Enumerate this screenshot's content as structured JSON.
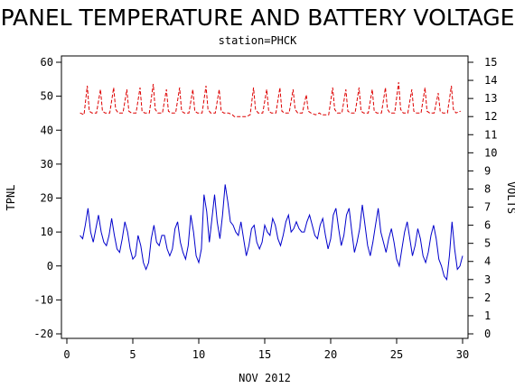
{
  "chart_data": {
    "type": "line",
    "title": "PANEL TEMPERATURE AND BATTERY VOLTAGE",
    "subtitle": "station=PHCK",
    "xlabel": "NOV 2012",
    "ylabel_left": "TPNL",
    "ylabel_right": "VOLTS",
    "xlim": [
      0,
      30
    ],
    "ylim_left": [
      -20,
      60
    ],
    "ylim_right": [
      0,
      15
    ],
    "x_ticks": [
      0,
      5,
      10,
      15,
      20,
      25,
      30
    ],
    "y_left_ticks": [
      -20,
      -10,
      0,
      10,
      20,
      30,
      40,
      50,
      60
    ],
    "y_right_ticks": [
      0,
      1,
      2,
      3,
      4,
      5,
      6,
      7,
      8,
      9,
      10,
      11,
      12,
      13,
      14,
      15
    ],
    "grid": false,
    "series": [
      {
        "axis": "left",
        "color": "#0000cc",
        "style": "solid",
        "x": [
          1.0,
          1.2,
          1.4,
          1.6,
          1.8,
          2.0,
          2.2,
          2.4,
          2.6,
          2.8,
          3.0,
          3.2,
          3.4,
          3.6,
          3.8,
          4.0,
          4.2,
          4.4,
          4.6,
          4.8,
          5.0,
          5.2,
          5.4,
          5.6,
          5.8,
          6.0,
          6.2,
          6.4,
          6.6,
          6.8,
          7.0,
          7.2,
          7.4,
          7.6,
          7.8,
          8.0,
          8.2,
          8.4,
          8.6,
          8.8,
          9.0,
          9.2,
          9.4,
          9.6,
          9.8,
          10.0,
          10.2,
          10.4,
          10.6,
          10.8,
          11.0,
          11.2,
          11.4,
          11.6,
          11.8,
          12.0,
          12.2,
          12.4,
          12.6,
          12.8,
          13.0,
          13.2,
          13.4,
          13.6,
          13.8,
          14.0,
          14.2,
          14.4,
          14.6,
          14.8,
          15.0,
          15.2,
          15.4,
          15.6,
          15.8,
          16.0,
          16.2,
          16.4,
          16.6,
          16.8,
          17.0,
          17.2,
          17.4,
          17.6,
          17.8,
          18.0,
          18.2,
          18.4,
          18.6,
          18.8,
          19.0,
          19.2,
          19.4,
          19.6,
          19.8,
          20.0,
          20.2,
          20.4,
          20.6,
          20.8,
          21.0,
          21.2,
          21.4,
          21.6,
          21.8,
          22.0,
          22.2,
          22.4,
          22.6,
          22.8,
          23.0,
          23.2,
          23.4,
          23.6,
          23.8,
          24.0,
          24.2,
          24.4,
          24.6,
          24.8,
          25.0,
          25.2,
          25.4,
          25.6,
          25.8,
          26.0,
          26.2,
          26.4,
          26.6,
          26.8,
          27.0,
          27.2,
          27.4,
          27.6,
          27.8,
          28.0,
          28.2,
          28.4,
          28.6,
          28.8,
          29.0,
          29.2,
          29.4,
          29.6,
          29.8,
          30.0
        ],
        "values": [
          9,
          8,
          12,
          17,
          10,
          7,
          11,
          15,
          10,
          7,
          6,
          9,
          14,
          9,
          5,
          4,
          8,
          13,
          10,
          5,
          2,
          3,
          9,
          6,
          1,
          -1,
          1,
          8,
          12,
          7,
          6,
          9,
          9,
          5,
          3,
          5,
          11,
          13,
          7,
          4,
          2,
          6,
          15,
          10,
          3,
          1,
          5,
          21,
          16,
          7,
          14,
          21,
          13,
          8,
          15,
          24,
          19,
          13,
          12,
          10,
          9,
          13,
          8,
          3,
          6,
          11,
          12,
          7,
          5,
          7,
          12,
          10,
          9,
          14,
          12,
          8,
          6,
          9,
          13,
          15,
          10,
          11,
          13,
          11,
          10,
          10,
          13,
          15,
          12,
          9,
          8,
          12,
          14,
          9,
          5,
          8,
          15,
          17,
          11,
          6,
          9,
          15,
          17,
          10,
          4,
          7,
          11,
          18,
          12,
          6,
          3,
          7,
          12,
          17,
          10,
          7,
          4,
          8,
          11,
          7,
          2,
          0,
          5,
          10,
          13,
          8,
          3,
          6,
          11,
          8,
          3,
          1,
          4,
          9,
          12,
          8,
          2,
          0,
          -3,
          -4,
          3,
          13,
          5,
          -1,
          0,
          3
        ],
        "x_end": [
          30.0
        ]
      },
      {
        "axis": "right",
        "color": "#dd0000",
        "style": "dashed",
        "x": [
          1.0,
          1.3,
          1.55,
          1.7,
          1.9,
          2.25,
          2.55,
          2.7,
          2.9,
          3.25,
          3.55,
          3.7,
          3.9,
          4.25,
          4.55,
          4.7,
          4.9,
          5.25,
          5.55,
          5.7,
          5.9,
          6.25,
          6.55,
          6.7,
          6.9,
          7.25,
          7.55,
          7.7,
          7.9,
          8.25,
          8.55,
          8.7,
          8.9,
          9.25,
          9.55,
          9.7,
          9.9,
          10.25,
          10.55,
          10.7,
          10.9,
          11.25,
          11.55,
          11.7,
          11.9,
          12.25,
          12.55,
          12.7,
          12.9,
          13.25,
          13.6,
          13.9,
          14.15,
          14.3,
          14.5,
          14.85,
          15.15,
          15.3,
          15.5,
          15.85,
          16.15,
          16.3,
          16.5,
          16.85,
          17.15,
          17.3,
          17.5,
          17.85,
          18.15,
          18.3,
          18.5,
          18.85,
          19.15,
          19.3,
          19.5,
          19.85,
          20.15,
          20.3,
          20.5,
          20.85,
          21.15,
          21.3,
          21.5,
          21.85,
          22.15,
          22.3,
          22.5,
          22.85,
          23.15,
          23.3,
          23.5,
          23.85,
          24.15,
          24.3,
          24.5,
          24.85,
          25.15,
          25.3,
          25.5,
          25.85,
          26.15,
          26.3,
          26.5,
          26.85,
          27.15,
          27.3,
          27.5,
          27.85,
          28.15,
          28.3,
          28.5,
          28.85,
          29.15,
          29.3,
          29.5,
          29.85
        ],
        "values": [
          12.2,
          12.1,
          13.7,
          12.3,
          12.2,
          12.2,
          13.5,
          12.3,
          12.2,
          12.2,
          13.6,
          12.4,
          12.2,
          12.2,
          13.5,
          12.3,
          12.2,
          12.2,
          13.6,
          12.3,
          12.2,
          12.2,
          13.8,
          12.4,
          12.2,
          12.2,
          13.5,
          12.3,
          12.2,
          12.2,
          13.6,
          12.3,
          12.2,
          12.2,
          13.5,
          12.3,
          12.2,
          12.2,
          13.7,
          12.4,
          12.2,
          12.2,
          13.5,
          12.3,
          12.2,
          12.2,
          12.1,
          12.0,
          12.0,
          12.0,
          12.0,
          12.1,
          13.6,
          12.4,
          12.2,
          12.2,
          13.5,
          12.3,
          12.2,
          12.2,
          13.6,
          12.3,
          12.2,
          12.2,
          13.5,
          12.4,
          12.2,
          12.2,
          13.2,
          12.3,
          12.2,
          12.1,
          12.2,
          12.1,
          12.1,
          12.1,
          13.6,
          12.4,
          12.2,
          12.2,
          13.5,
          12.3,
          12.2,
          12.2,
          13.6,
          12.3,
          12.2,
          12.2,
          13.5,
          12.3,
          12.2,
          12.2,
          13.6,
          12.4,
          12.2,
          12.2,
          13.9,
          12.4,
          12.2,
          12.2,
          13.5,
          12.3,
          12.2,
          12.2,
          13.6,
          12.3,
          12.2,
          12.2,
          13.3,
          12.3,
          12.2,
          12.2,
          13.7,
          12.4,
          12.2,
          12.3
        ]
      }
    ]
  }
}
